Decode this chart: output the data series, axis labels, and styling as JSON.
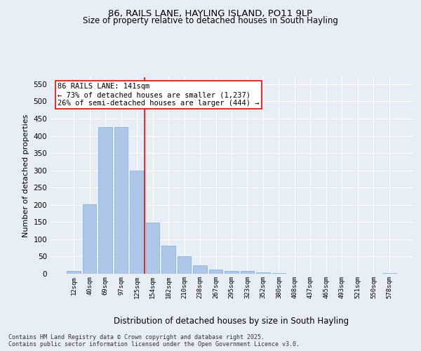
{
  "title1": "86, RAILS LANE, HAYLING ISLAND, PO11 9LP",
  "title2": "Size of property relative to detached houses in South Hayling",
  "xlabel": "Distribution of detached houses by size in South Hayling",
  "ylabel": "Number of detached properties",
  "categories": [
    "12sqm",
    "40sqm",
    "69sqm",
    "97sqm",
    "125sqm",
    "154sqm",
    "182sqm",
    "210sqm",
    "238sqm",
    "267sqm",
    "295sqm",
    "323sqm",
    "352sqm",
    "380sqm",
    "408sqm",
    "437sqm",
    "465sqm",
    "493sqm",
    "521sqm",
    "550sqm",
    "578sqm"
  ],
  "values": [
    8,
    202,
    425,
    425,
    300,
    148,
    82,
    50,
    25,
    12,
    9,
    9,
    5,
    3,
    0,
    0,
    0,
    0,
    0,
    0,
    2
  ],
  "bar_color": "#aec6e8",
  "bar_edge_color": "#7bafd4",
  "redline_index": 4.5,
  "annotation_title": "86 RAILS LANE: 141sqm",
  "annotation_line1": "← 73% of detached houses are smaller (1,237)",
  "annotation_line2": "26% of semi-detached houses are larger (444) →",
  "ylim": [
    0,
    570
  ],
  "yticks": [
    0,
    50,
    100,
    150,
    200,
    250,
    300,
    350,
    400,
    450,
    500,
    550
  ],
  "bg_color": "#e8eef5",
  "grid_color": "#ffffff",
  "footnote": "Contains HM Land Registry data © Crown copyright and database right 2025.\nContains public sector information licensed under the Open Government Licence v3.0."
}
